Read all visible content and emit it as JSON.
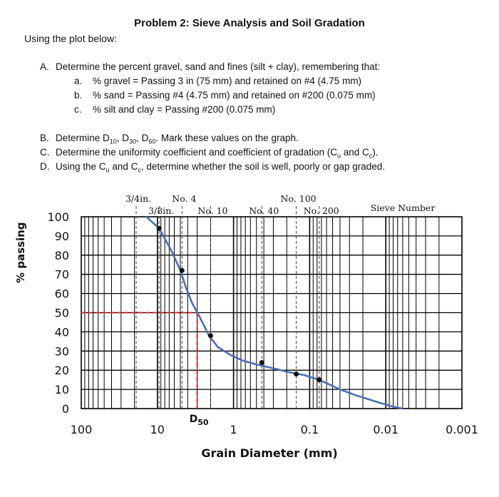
{
  "title": "Problem 2: Sieve Analysis and Soil Gradation",
  "intro": "Using the plot below:",
  "questions": {
    "A": {
      "label": "A.",
      "text": "Determine the percent gravel, sand and fines (silt + clay), remembering that:",
      "items": [
        {
          "label": "a.",
          "text": "% gravel = Passing 3 in (75 mm) and retained on #4 (4.75 mm)"
        },
        {
          "label": "b.",
          "text": "% sand = Passing #4 (4.75 mm) and retained on #200 (0.075 mm)"
        },
        {
          "label": "c.",
          "text": "% silt and clay = Passing #200 (0.075 mm)"
        }
      ]
    },
    "B": {
      "label": "B.",
      "pre": "Determine D",
      "s1": "10",
      "m1": ", D",
      "s2": "30",
      "m2": ", D",
      "s3": "60",
      "post": ". Mark these values on the graph."
    },
    "C": {
      "label": "C.",
      "pre": "Determine the uniformity coefficient and coefficient of gradation (C",
      "s1": "u",
      "m1": " and C",
      "s2": "c",
      "post": ")."
    },
    "D": {
      "label": "D.",
      "pre": "Using the C",
      "s1": "u",
      "m1": " and C",
      "s2": "c",
      "post": ", determine whether the soil is well, poorly or gap graded."
    }
  },
  "chart_data": {
    "type": "line",
    "x_scale": "log",
    "x_reversed": true,
    "xlim": [
      100,
      0.001
    ],
    "ylim": [
      0,
      100
    ],
    "xlabel": "Grain Diameter (mm)",
    "ylabel": "% passing",
    "x_ticks": [
      {
        "value": 100,
        "label": "100"
      },
      {
        "value": 10,
        "label": "10"
      },
      {
        "value": 1,
        "label": "1"
      },
      {
        "value": 0.1,
        "label": "0.1"
      },
      {
        "value": 0.01,
        "label": "0.01"
      },
      {
        "value": 0.001,
        "label": "0.001"
      }
    ],
    "y_ticks": [
      0,
      10,
      20,
      30,
      40,
      50,
      60,
      70,
      80,
      90,
      100
    ],
    "grid": true,
    "sieve_header": "Sieve Number",
    "sieves": [
      {
        "label": "3/4in.",
        "size": 19.0,
        "row": "top"
      },
      {
        "label": "3/8in.",
        "size": 9.5,
        "row": "bottom"
      },
      {
        "label": "No. 4",
        "size": 4.75,
        "row": "top"
      },
      {
        "label": "No. 10",
        "size": 2.0,
        "row": "bottom"
      },
      {
        "label": "No. 40",
        "size": 0.425,
        "row": "bottom"
      },
      {
        "label": "No. 100",
        "size": 0.15,
        "row": "top"
      },
      {
        "label": "No. 200",
        "size": 0.075,
        "row": "bottom"
      }
    ],
    "series": [
      {
        "color": "#4a6fb5",
        "x": [
          14,
          9.5,
          6.5,
          5.0,
          4.2,
          3.5,
          2.8,
          2.1,
          1.6,
          1.1,
          0.75,
          0.5,
          0.3,
          0.19,
          0.12,
          0.075,
          0.04,
          0.025,
          0.012,
          0.008,
          0.006
        ],
        "y": [
          100,
          94,
          82,
          72,
          63,
          55,
          48,
          38,
          32,
          28,
          25,
          23,
          21,
          19,
          17.5,
          15,
          10,
          7,
          3,
          1,
          0
        ]
      }
    ],
    "markers": {
      "x": [
        9.5,
        4.75,
        2.0,
        0.425,
        0.15,
        0.075
      ],
      "y": [
        94,
        72,
        38,
        24,
        18,
        15
      ]
    },
    "d50": {
      "label": "D",
      "sub": "50",
      "x": 3.0,
      "y": 50,
      "color": "#e02020"
    }
  }
}
